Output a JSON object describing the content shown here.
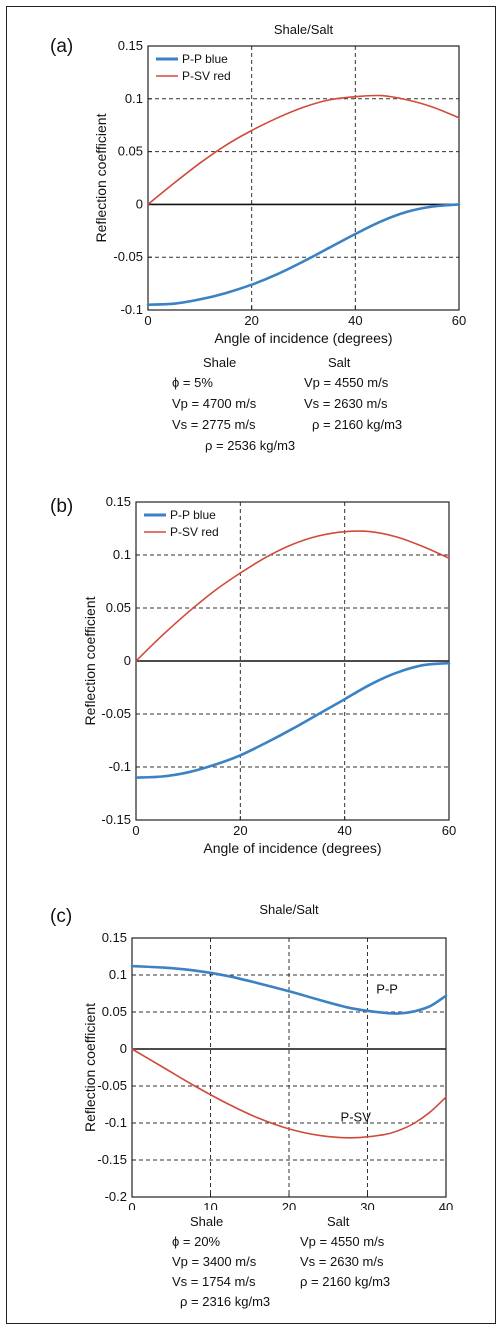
{
  "panels": [
    {
      "letter": "(a)",
      "chart_data": {
        "type": "line",
        "title": "Shale/Salt",
        "xlabel": "Angle of incidence (degrees)",
        "ylabel": "Reflection coefficient",
        "xlim": [
          0,
          60
        ],
        "ylim": [
          -0.1,
          0.15
        ],
        "xticks": [
          0,
          20,
          40,
          60
        ],
        "yticks": [
          -0.1,
          -0.05,
          0,
          0.05,
          0.1,
          0.15
        ],
        "xtick_labels": [
          "0",
          "20",
          "40",
          "60"
        ],
        "ytick_labels": [
          "-0.1",
          "-0.05",
          "0",
          "0.05",
          "0.1",
          "0.15"
        ],
        "grid": "dashed",
        "legend_position": "top-left",
        "legend": [
          "P-P blue",
          "P-SV red"
        ],
        "annotations": [],
        "series": [
          {
            "name": "P-P blue",
            "color": "#3b82c4",
            "x": [
              0,
              5,
              10,
              15,
              20,
              25,
              30,
              35,
              40,
              45,
              50,
              55,
              60
            ],
            "y": [
              -0.095,
              -0.094,
              -0.09,
              -0.084,
              -0.076,
              -0.066,
              -0.054,
              -0.041,
              -0.028,
              -0.016,
              -0.007,
              -0.002,
              0
            ]
          },
          {
            "name": "P-SV red",
            "color": "#d04a3a",
            "x": [
              0,
              5,
              10,
              15,
              20,
              25,
              30,
              35,
              40,
              45,
              50,
              55,
              60
            ],
            "y": [
              0,
              0.02,
              0.039,
              0.056,
              0.07,
              0.082,
              0.092,
              0.099,
              0.102,
              0.103,
              0.099,
              0.092,
              0.082
            ]
          }
        ]
      },
      "props": {
        "left_header": "Shale",
        "right_header": "Salt",
        "left": [
          "ϕ = 5%",
          "Vp = 4700 m/s",
          "Vs = 2775 m/s",
          "ρ = 2536 kg/m3"
        ],
        "right": [
          "Vp = 4550 m/s",
          "Vs = 2630 m/s",
          "ρ = 2160 kg/m3"
        ]
      }
    },
    {
      "letter": "(b)",
      "chart_data": {
        "type": "line",
        "title": "",
        "xlabel": "Angle of incidence (degrees)",
        "ylabel": "Reflection coefficient",
        "xlim": [
          0,
          60
        ],
        "ylim": [
          -0.15,
          0.15
        ],
        "xticks": [
          0,
          20,
          40,
          60
        ],
        "yticks": [
          -0.15,
          -0.1,
          -0.05,
          0,
          0.05,
          0.1,
          0.15
        ],
        "xtick_labels": [
          "0",
          "20",
          "40",
          "60"
        ],
        "ytick_labels": [
          "-0.15",
          "-0.1",
          "-0.05",
          "0",
          "0.05",
          "0.1",
          "0.15"
        ],
        "grid": "dashed",
        "legend_position": "top-left",
        "legend": [
          "P-P blue",
          "P-SV red"
        ],
        "annotations": [],
        "series": [
          {
            "name": "P-P blue",
            "color": "#3b82c4",
            "x": [
              0,
              5,
              10,
              15,
              20,
              25,
              30,
              35,
              40,
              45,
              50,
              55,
              60
            ],
            "y": [
              -0.11,
              -0.109,
              -0.105,
              -0.098,
              -0.089,
              -0.077,
              -0.064,
              -0.05,
              -0.036,
              -0.022,
              -0.011,
              -0.004,
              -0.002
            ]
          },
          {
            "name": "P-SV red",
            "color": "#d04a3a",
            "x": [
              0,
              5,
              10,
              15,
              20,
              25,
              30,
              35,
              40,
              45,
              50,
              55,
              60
            ],
            "y": [
              0,
              0.024,
              0.046,
              0.066,
              0.083,
              0.098,
              0.11,
              0.118,
              0.122,
              0.122,
              0.117,
              0.108,
              0.097
            ]
          }
        ]
      }
    },
    {
      "letter": "(c)",
      "chart_data": {
        "type": "line",
        "title": "Shale/Salt",
        "xlabel": "Angle of incidence (degrees)",
        "ylabel": "Reflection coefficient",
        "xlim": [
          0,
          40
        ],
        "ylim": [
          -0.2,
          0.15
        ],
        "xticks": [
          0,
          10,
          20,
          30,
          40
        ],
        "yticks": [
          -0.2,
          -0.15,
          -0.1,
          -0.05,
          0,
          0.05,
          0.1,
          0.15
        ],
        "xtick_labels": [
          "0",
          "10",
          "20",
          "30",
          "40"
        ],
        "ytick_labels": [
          "-0.2",
          "-0.15",
          "-0.1",
          "-0.05",
          "0",
          "0.05",
          "0.1",
          "0.15"
        ],
        "grid": "dashed",
        "legend": [],
        "annotations": [
          "P-P",
          "P-SV"
        ],
        "series": [
          {
            "name": "P-P",
            "color": "#3b82c4",
            "x": [
              0,
              4,
              8,
              12,
              16,
              20,
              24,
              28,
              32,
              34,
              36,
              38,
              40
            ],
            "y": [
              0.112,
              0.11,
              0.106,
              0.099,
              0.089,
              0.078,
              0.066,
              0.055,
              0.049,
              0.048,
              0.051,
              0.058,
              0.072
            ]
          },
          {
            "name": "P-SV",
            "color": "#d04a3a",
            "x": [
              0,
              4,
              8,
              12,
              16,
              20,
              24,
              28,
              32,
              34,
              36,
              38,
              40
            ],
            "y": [
              0,
              -0.025,
              -0.05,
              -0.073,
              -0.093,
              -0.108,
              -0.117,
              -0.12,
              -0.116,
              -0.11,
              -0.1,
              -0.085,
              -0.065
            ]
          }
        ]
      },
      "props": {
        "left_header": "Shale",
        "right_header": "Salt",
        "left": [
          "ϕ = 20%",
          "Vp = 3400 m/s",
          "Vs = 1754 m/s",
          "ρ = 2316 kg/m3"
        ],
        "right": [
          "Vp = 4550 m/s",
          "Vs = 2630 m/s",
          "ρ = 2160 kg/m3"
        ]
      }
    }
  ]
}
